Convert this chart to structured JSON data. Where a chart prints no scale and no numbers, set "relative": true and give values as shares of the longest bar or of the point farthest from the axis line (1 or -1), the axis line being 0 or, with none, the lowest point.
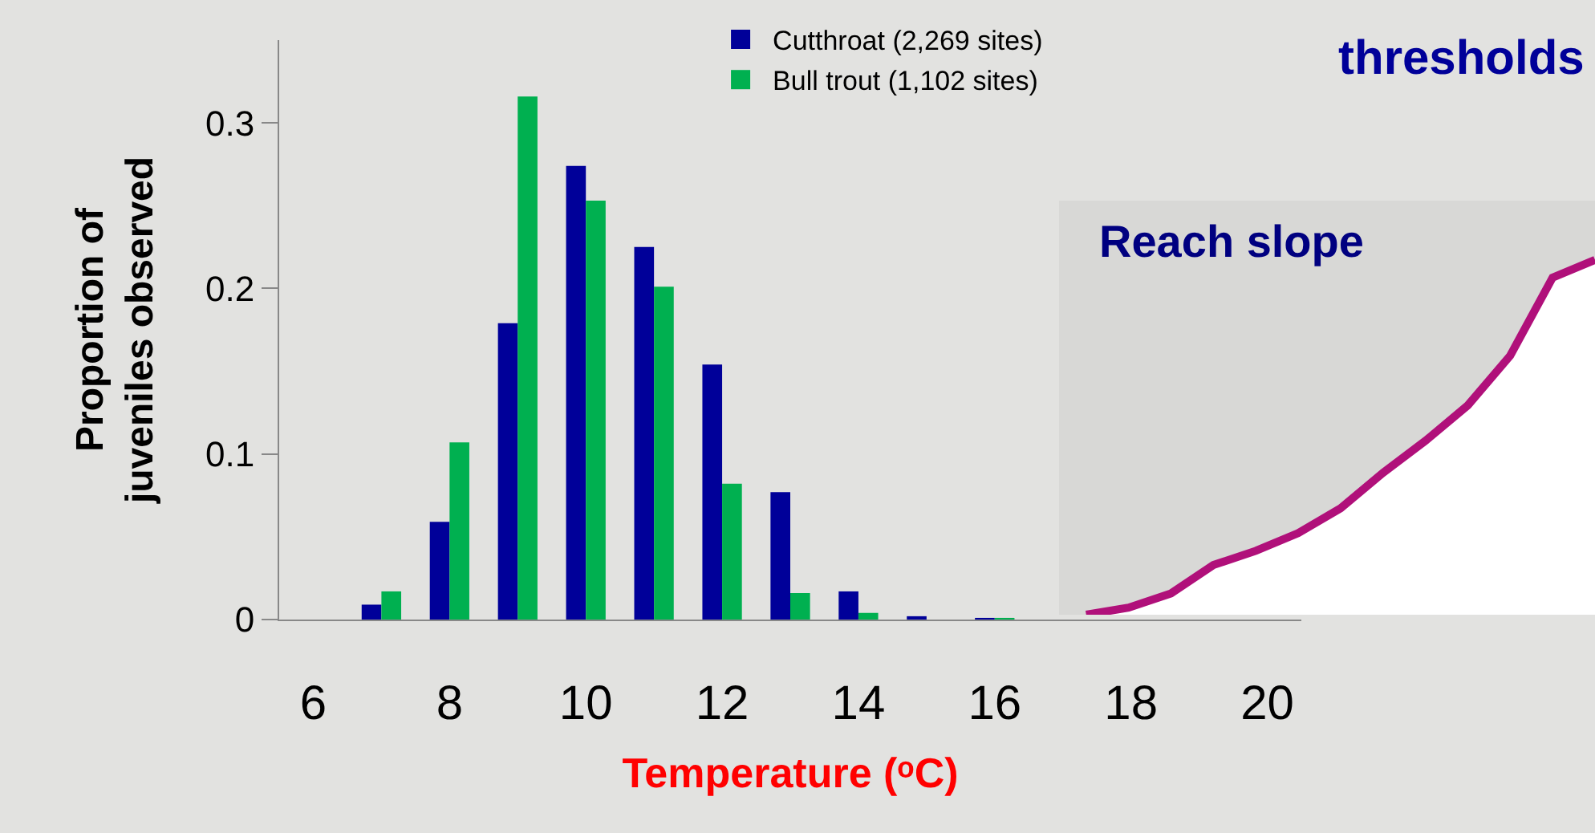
{
  "chart_data": [
    {
      "type": "bar",
      "xlabel": "Temperature (ᵒC)",
      "ylabel": "Proportion of juveniles observed",
      "categories": [
        "6",
        null,
        "8",
        null,
        "10",
        null,
        "12",
        null,
        "14",
        null,
        "16",
        null,
        "18",
        null,
        "20"
      ],
      "series": [
        {
          "name": "Cutthroat (2,269 sites)",
          "color": "#000099",
          "values": [
            0,
            0.009,
            0.059,
            0.179,
            0.274,
            0.225,
            0.154,
            0.077,
            0.017,
            0.002,
            0.001,
            0,
            0,
            0,
            0
          ]
        },
        {
          "name": "Bull trout (1,102 sites)",
          "color": "#00b050",
          "values": [
            0,
            0.017,
            0.107,
            0.316,
            0.253,
            0.201,
            0.082,
            0.016,
            0.004,
            0,
            0.001,
            0,
            0,
            0,
            0
          ]
        }
      ],
      "ylim": [
        0,
        0.35
      ],
      "yticks": [
        0,
        0.1,
        0.2,
        0.3
      ],
      "grid": false,
      "legend": "top right",
      "annotations": [
        "thresholds"
      ]
    },
    {
      "type": "area",
      "title": "Reach slope",
      "relative": true,
      "categories": [
        null,
        null,
        null,
        null,
        null,
        null,
        null,
        null,
        null,
        null,
        null,
        null,
        null
      ],
      "series": [
        {
          "color": "#b0107a",
          "values": [
            0,
            0.02,
            0.06,
            0.14,
            0.18,
            0.23,
            0.3,
            0.4,
            0.49,
            0.59,
            0.73,
            0.95,
            1
          ]
        }
      ]
    }
  ]
}
